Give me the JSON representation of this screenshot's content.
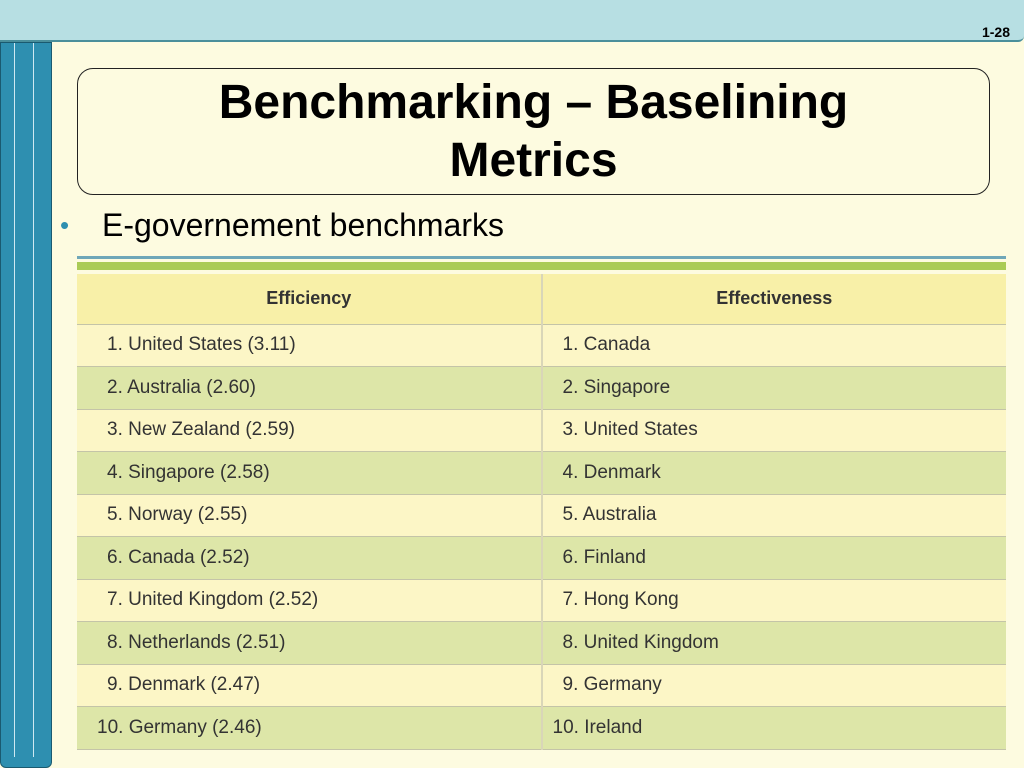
{
  "slide": {
    "number": "1-28"
  },
  "title": "Benchmarking – Baselining Metrics",
  "bullet": "E-governement benchmarks",
  "colors": {
    "accent": "#2e8fb0",
    "header_bar": "#b7dfe3",
    "table_stripe": "#aacb56"
  },
  "table": {
    "headers": [
      "Efficiency",
      "Effectiveness"
    ],
    "rows": [
      [
        "1. United States (3.11)",
        "1. Canada"
      ],
      [
        "2. Australia (2.60)",
        "2. Singapore"
      ],
      [
        "3. New Zealand (2.59)",
        "3. United States"
      ],
      [
        "4. Singapore (2.58)",
        "4. Denmark"
      ],
      [
        "5. Norway (2.55)",
        "5. Australia"
      ],
      [
        "6. Canada (2.52)",
        "6. Finland"
      ],
      [
        "7. United Kingdom (2.52)",
        "7. Hong Kong"
      ],
      [
        "8. Netherlands (2.51)",
        "8. United Kingdom"
      ],
      [
        "9. Denmark (2.47)",
        "9. Germany"
      ],
      [
        "10. Germany (2.46)",
        "10. Ireland"
      ]
    ]
  }
}
